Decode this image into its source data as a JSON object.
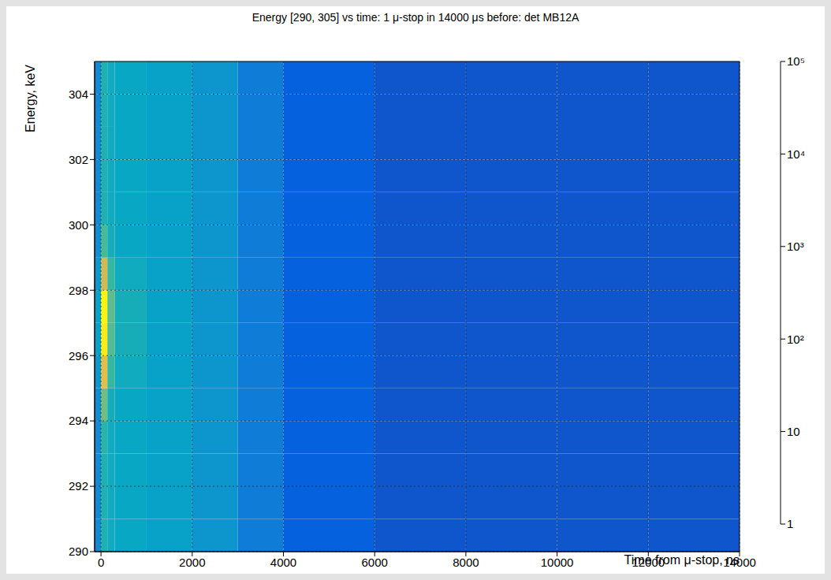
{
  "chart_data": {
    "type": "heatmap",
    "title": "Energy [290, 305] vs time: 1 μ-stop in 14000 μs before: det MB12A",
    "x_label": "Time from μ-stop, ns",
    "y_label": "Energy, keV",
    "xlim": [
      -140,
      14000
    ],
    "ylim": [
      290,
      305
    ],
    "xticks": [
      0,
      2000,
      4000,
      6000,
      8000,
      10000,
      12000,
      14000
    ],
    "yticks": [
      290,
      292,
      294,
      296,
      298,
      300,
      302,
      304
    ],
    "grid": true,
    "log": "z",
    "x_edges": [
      -140,
      0,
      140,
      300,
      1000,
      2000,
      3000,
      4000,
      6000,
      8000,
      10000,
      12000,
      14000
    ],
    "y_edges": [
      290,
      291,
      292,
      293,
      294,
      295,
      296,
      297,
      298,
      299,
      300,
      301,
      302,
      303,
      304,
      305
    ],
    "cells": [
      [
        20,
        150,
        100,
        80,
        60,
        35,
        12,
        4,
        3,
        3,
        3,
        3
      ],
      [
        20,
        150,
        100,
        80,
        60,
        35,
        12,
        4,
        3,
        3,
        3,
        3
      ],
      [
        20,
        150,
        100,
        80,
        60,
        35,
        12,
        4,
        3,
        3,
        3,
        3
      ],
      [
        20,
        200,
        100,
        80,
        60,
        35,
        12,
        4,
        3,
        3,
        3,
        3
      ],
      [
        25,
        800,
        120,
        80,
        60,
        35,
        12,
        4,
        3,
        3,
        3,
        3
      ],
      [
        40,
        8000,
        300,
        100,
        60,
        35,
        12,
        4,
        3,
        3,
        3,
        3
      ],
      [
        60,
        60000,
        500,
        120,
        60,
        35,
        12,
        4,
        3,
        3,
        3,
        3
      ],
      [
        60,
        80000,
        600,
        120,
        60,
        35,
        12,
        4,
        3,
        3,
        3,
        3
      ],
      [
        40,
        5000,
        300,
        100,
        60,
        35,
        12,
        4,
        3,
        3,
        3,
        3
      ],
      [
        25,
        400,
        120,
        80,
        60,
        35,
        12,
        4,
        3,
        3,
        3,
        3
      ],
      [
        20,
        150,
        100,
        80,
        60,
        35,
        12,
        4,
        3,
        3,
        3,
        3
      ],
      [
        20,
        150,
        100,
        80,
        60,
        35,
        12,
        4,
        3,
        3,
        3,
        3
      ],
      [
        20,
        150,
        100,
        80,
        60,
        35,
        12,
        4,
        3,
        3,
        3,
        3
      ],
      [
        20,
        150,
        100,
        80,
        60,
        35,
        12,
        4,
        3,
        3,
        3,
        3
      ],
      [
        20,
        150,
        100,
        80,
        60,
        35,
        12,
        4,
        3,
        3,
        3,
        3
      ]
    ],
    "colorbar_lim": [
      1,
      100000
    ],
    "colorbar_ticks": [
      1,
      10,
      {
        "value": 100,
        "label": "10²"
      },
      {
        "value": 1000,
        "label": "10³"
      },
      {
        "value": 10000,
        "label": "10⁴"
      },
      {
        "value": 100000,
        "label": "10⁵"
      }
    ]
  }
}
